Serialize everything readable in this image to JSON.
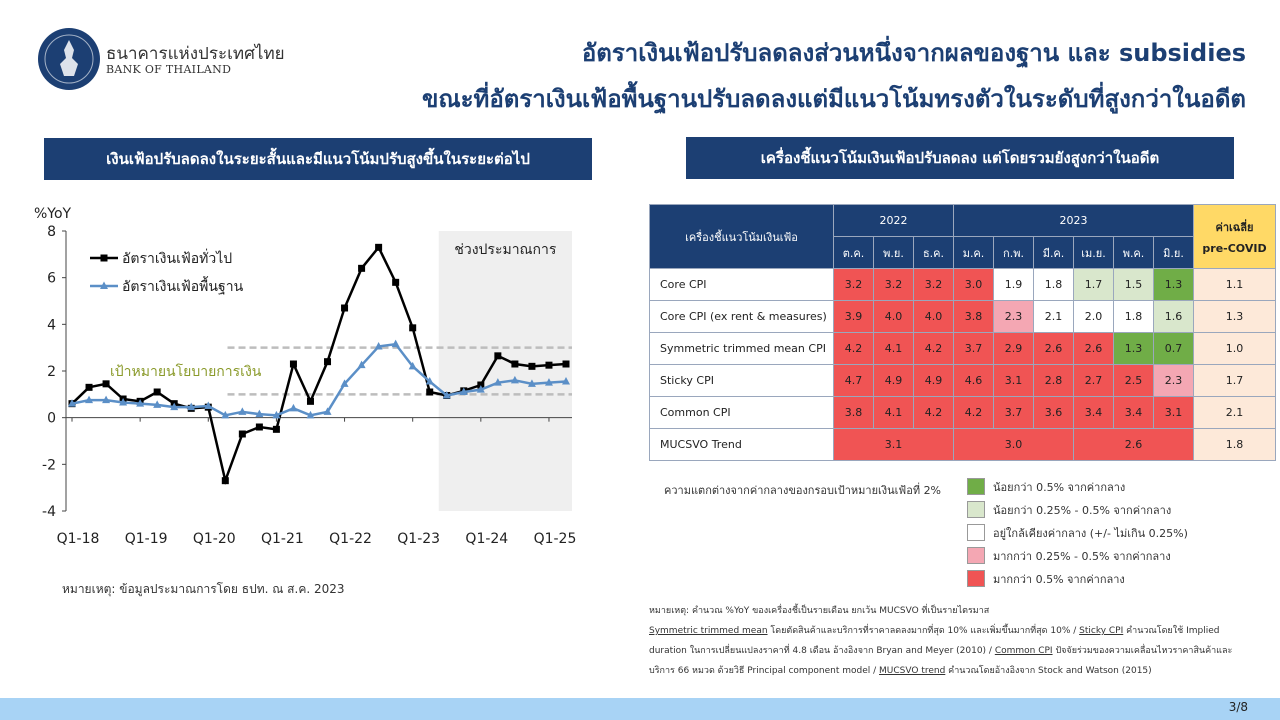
{
  "header": {
    "bank_name_th": "ธนาคารแห่งประเทศไทย",
    "bank_name_en": "BANK OF THAILAND",
    "title_line1": "อัตราเงินเฟ้อปรับลดลงส่วนหนึ่งจากผลของฐาน และ subsidies",
    "title_line2": "ขณะที่อัตราเงินเฟ้อพื้นฐานปรับลดลงแต่มีแนวโน้มทรงตัวในระดับที่สูงกว่าในอดีต"
  },
  "left_panel": {
    "banner": "เงินเฟ้อปรับลดลงในระยะสั้นและมีแนวโน้มปรับสูงขึ้นในระยะต่อไป",
    "note": "หมายเหตุ: ข้อมูลประมาณการโดย ธปท. ณ ส.ค. 2023"
  },
  "right_panel": {
    "banner": "เครื่องชี้แนวโน้มเงินเฟ้อปรับลดลง แต่โดยรวมยังสูงกว่าในอดีต"
  },
  "chart_data": {
    "type": "line",
    "ylabel": "%YoY",
    "ylim": [
      -4,
      8
    ],
    "yticks": [
      -4,
      -2,
      0,
      2,
      4,
      6,
      8
    ],
    "xtick_labels": [
      "Q1-18",
      "Q1-19",
      "Q1-20",
      "Q1-21",
      "Q1-22",
      "Q1-23",
      "Q1-24",
      "Q1-25"
    ],
    "x_start_quarter": 1,
    "forecast_label": "ช่วงประมาณการ",
    "forecast_start_index": 22,
    "target_label": "เป้าหมายนโยบายการเงิน",
    "target_band": [
      1,
      3
    ],
    "legend_position": "top-left",
    "series": [
      {
        "name": "อัตราเงินเฟ้อทั่วไป",
        "color": "#000000",
        "marker": "square",
        "values": [
          0.6,
          1.3,
          1.45,
          0.8,
          0.7,
          1.1,
          0.6,
          0.4,
          0.45,
          -2.7,
          -0.7,
          -0.4,
          -0.5,
          2.3,
          0.7,
          2.4,
          4.7,
          6.4,
          7.3,
          5.8,
          3.85,
          1.1,
          0.95,
          1.15,
          1.4,
          2.65,
          2.3,
          2.2,
          2.25,
          2.3
        ]
      },
      {
        "name": "อัตราเงินเฟ้อพื้นฐาน",
        "color": "#5b8fc7",
        "marker": "triangle",
        "values": [
          0.6,
          0.75,
          0.75,
          0.65,
          0.6,
          0.55,
          0.45,
          0.45,
          0.5,
          0.1,
          0.25,
          0.15,
          0.1,
          0.4,
          0.1,
          0.25,
          1.45,
          2.25,
          3.05,
          3.15,
          2.2,
          1.55,
          0.95,
          1.1,
          1.2,
          1.5,
          1.6,
          1.45,
          1.5,
          1.55
        ]
      }
    ]
  },
  "table": {
    "header_label": "เครื่องชี้แนวโน้มเงินเฟ้อ",
    "year_2022": "2022",
    "year_2023": "2023",
    "avg_label_line1": "ค่าเฉลี่ย",
    "avg_label_line2": "pre-COVID",
    "months": [
      "ต.ค.",
      "พ.ย.",
      "ธ.ค.",
      "ม.ค.",
      "ก.พ.",
      "มี.ค.",
      "เม.ย.",
      "พ.ค.",
      "มิ.ย."
    ],
    "rows": [
      {
        "label": "Core CPI",
        "values": [
          "3.2",
          "3.2",
          "3.2",
          "3.0",
          "1.9",
          "1.8",
          "1.7",
          "1.5",
          "1.3"
        ],
        "colors": [
          "r",
          "r",
          "r",
          "r",
          "w",
          "w",
          "lg",
          "lg",
          "g"
        ],
        "avg": "1.1"
      },
      {
        "label": "Core CPI (ex rent & measures)",
        "values": [
          "3.9",
          "4.0",
          "4.0",
          "3.8",
          "2.3",
          "2.1",
          "2.0",
          "1.8",
          "1.6"
        ],
        "colors": [
          "r",
          "r",
          "r",
          "r",
          "pk",
          "w",
          "w",
          "w",
          "lg"
        ],
        "avg": "1.3"
      },
      {
        "label": "Symmetric trimmed mean CPI",
        "values": [
          "4.2",
          "4.1",
          "4.2",
          "3.7",
          "2.9",
          "2.6",
          "2.6",
          "1.3",
          "0.7"
        ],
        "colors": [
          "r",
          "r",
          "r",
          "r",
          "r",
          "r",
          "r",
          "g",
          "g"
        ],
        "avg": "1.0"
      },
      {
        "label": "Sticky CPI",
        "values": [
          "4.7",
          "4.9",
          "4.9",
          "4.6",
          "3.1",
          "2.8",
          "2.7",
          "2.5",
          "2.3"
        ],
        "colors": [
          "r",
          "r",
          "r",
          "r",
          "r",
          "r",
          "r",
          "r",
          "pk"
        ],
        "avg": "1.7"
      },
      {
        "label": "Common CPI",
        "values": [
          "3.8",
          "4.1",
          "4.2",
          "4.2",
          "3.7",
          "3.6",
          "3.4",
          "3.4",
          "3.1"
        ],
        "colors": [
          "r",
          "r",
          "r",
          "r",
          "r",
          "r",
          "r",
          "r",
          "r"
        ],
        "avg": "2.1"
      }
    ],
    "mucsvo": {
      "label": "MUCSVO Trend",
      "v2022": "3.1",
      "v2023a": "3.0",
      "v2023b": "2.6",
      "avg": "1.8"
    }
  },
  "legend": {
    "title": "ความแตกต่างจากค่ากลางของกรอบเป้าหมายเงินเฟ้อที่ 2%",
    "items": [
      {
        "color": "#70ad47",
        "label": "น้อยกว่า 0.5% จากค่ากลาง"
      },
      {
        "color": "#d9e7cc",
        "label": "น้อยกว่า 0.25% - 0.5% จากค่ากลาง"
      },
      {
        "color": "#ffffff",
        "label": "อยู่ใกล้เคียงค่ากลาง (+/- ไม่เกิน 0.25%)"
      },
      {
        "color": "#f4a7b3",
        "label": "มากกว่า 0.25% - 0.5% จากค่ากลาง"
      },
      {
        "color": "#f05454",
        "label": "มากกว่า 0.5% จากค่ากลาง"
      }
    ]
  },
  "footnote": {
    "line1": "หมายเหตุ: คำนวณ %YoY ของเครื่องชี้เป็นรายเดือน ยกเว้น MUCSVO ที่เป็นรายไตรมาส",
    "term_stm": "Symmetric trimmed mean",
    "text_stm": " โดยตัดสินค้าและบริการที่ราคาลดลงมากที่สุด 10% และเพิ่มขึ้นมากที่สุด 10% / ",
    "term_sticky": "Sticky CPI",
    "text_sticky": " คำนวณโดยใช้ Implied duration ในการเปลี่ยนแปลงราคาที่ 4.8 เดือน อ้างอิงจาก Bryan and Meyer (2010) / ",
    "term_common": "Common CPI",
    "text_common": " ปัจจัยร่วมของความเคลื่อนไหวราคาสินค้าและบริการ 66 หมวด ด้วยวิธี Principal component model / ",
    "term_mucsvo": "MUCSVO trend",
    "text_mucsvo": " คำนวณโดยอ้างอิงจาก Stock and Watson (2015)"
  },
  "page": {
    "number": "3/8"
  },
  "colors": {
    "brand": "#1c3f73",
    "footer_bar": "#a8d3f5"
  }
}
